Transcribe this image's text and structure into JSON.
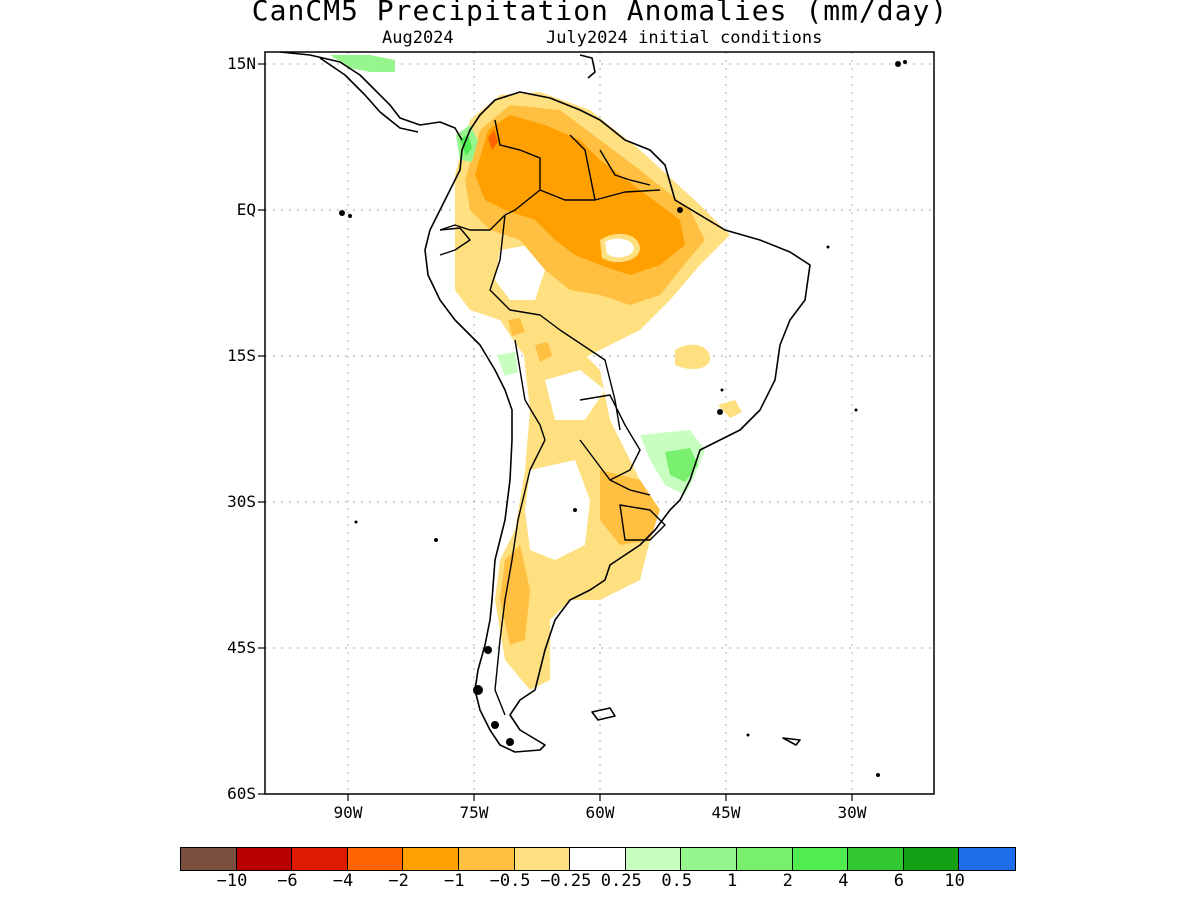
{
  "title": "CanCM5 Precipitation Anomalies (mm/day)",
  "subtitle_period": "Aug2024",
  "subtitle_init": "July2024 initial conditions",
  "lat_labels": [
    "15N",
    "EQ",
    "15S",
    "30S",
    "45S",
    "60S"
  ],
  "lon_labels": [
    "90W",
    "75W",
    "60W",
    "45W",
    "30W"
  ],
  "legend": {
    "colors": [
      "#7a5040",
      "#b80000",
      "#e01a00",
      "#ff6400",
      "#ffa000",
      "#ffbf40",
      "#ffe080",
      "#ffffff",
      "#c8ffc0",
      "#96f58c",
      "#78f06e",
      "#50ec50",
      "#32c832",
      "#14a014",
      "#1e6eeb"
    ],
    "ticks": [
      "-10",
      "-6",
      "-4",
      "-2",
      "-1",
      "-0.5",
      "-0.25",
      "0.25",
      "0.5",
      "1",
      "2",
      "4",
      "6",
      "10"
    ]
  }
}
